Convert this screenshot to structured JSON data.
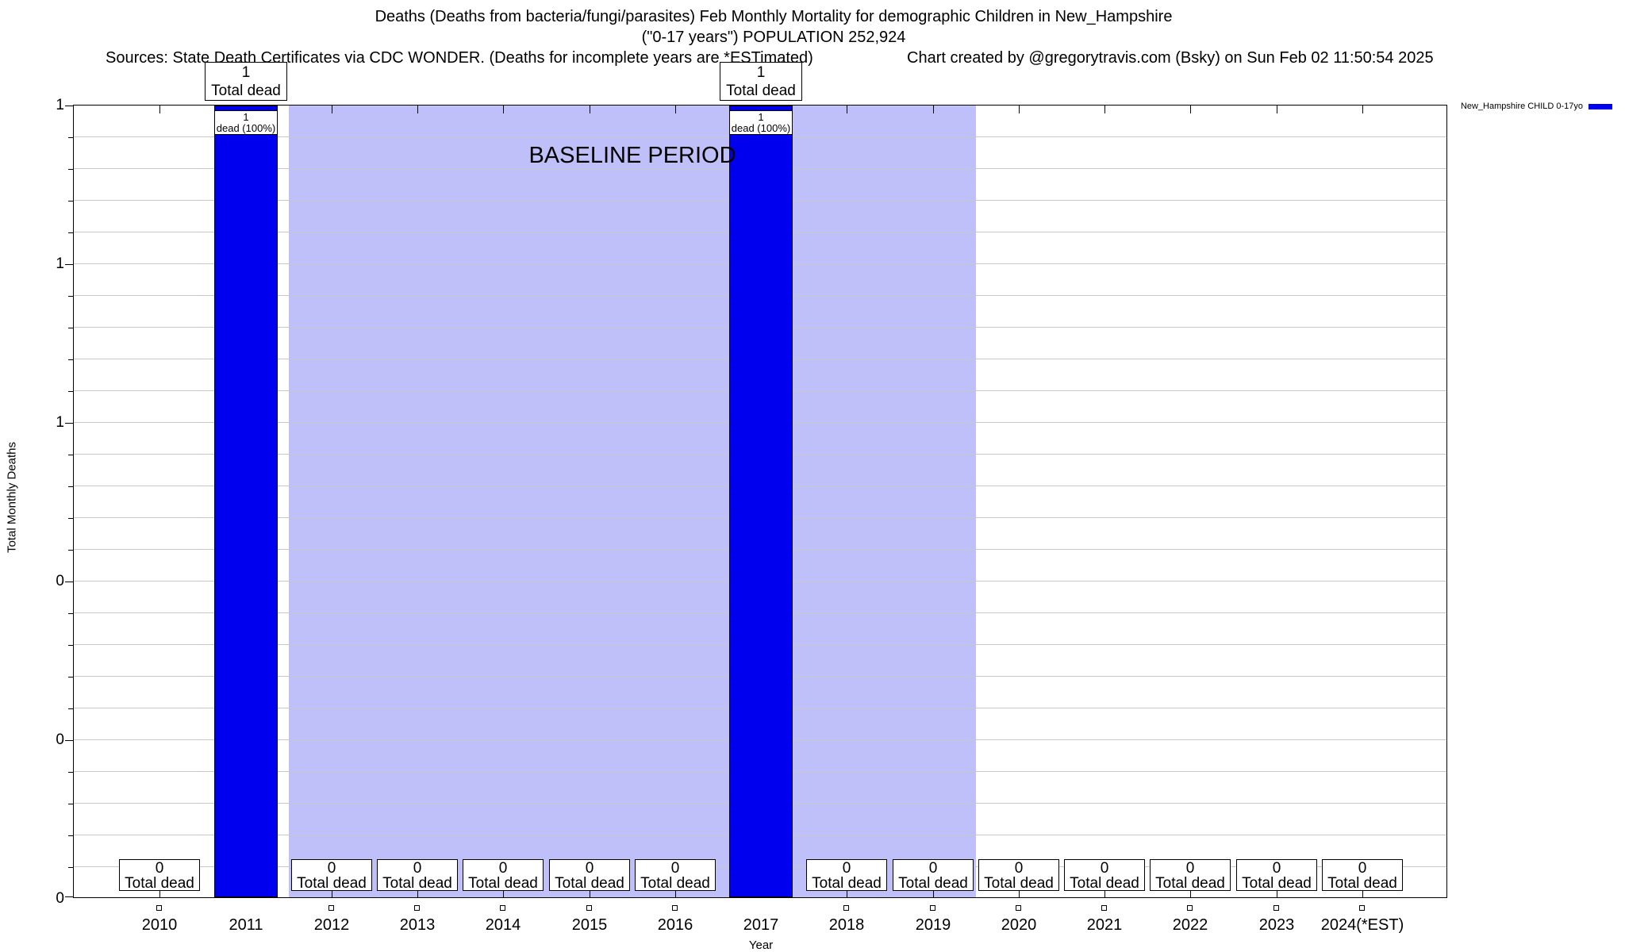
{
  "header": {
    "title_line1": "Deaths (Deaths from bacteria/fungi/parasites) Feb Monthly Mortality for demographic Children in New_Hampshire",
    "title_line2": "(\"0-17 years\") POPULATION 252,924",
    "sources": "Sources: State Death Certificates via CDC WONDER. (Deaths for incomplete years are *ESTimated)",
    "credit": "Chart created by @gregorytravis.com (Bsky) on Sun Feb 02 11:50:54 2025"
  },
  "legend": {
    "label": "New_Hampshire CHILD 0-17yo",
    "swatch_color": "#0000ee"
  },
  "chart_data": {
    "type": "bar",
    "title": "Deaths (Deaths from bacteria/fungi/parasites) Feb Monthly Mortality for demographic Children in New_Hampshire (\"0-17 years\") POPULATION 252,924",
    "xlabel": "Year",
    "ylabel": "Total Monthly Deaths",
    "ylim": [
      0,
      1
    ],
    "grid": true,
    "legend_position": "top-right",
    "ytick_labels_top_to_bottom": [
      "1",
      "1",
      "1",
      "0",
      "0",
      "0"
    ],
    "categories": [
      "2010",
      "2011",
      "2012",
      "2013",
      "2014",
      "2015",
      "2016",
      "2017",
      "2018",
      "2019",
      "2020",
      "2021",
      "2022",
      "2023",
      "2024(*EST)"
    ],
    "series": [
      {
        "name": "New_Hampshire CHILD 0-17yo",
        "color": "#0000ee",
        "values": [
          0,
          1,
          0,
          0,
          0,
          0,
          0,
          1,
          0,
          0,
          0,
          0,
          0,
          0,
          0
        ]
      }
    ],
    "years": [
      {
        "label": "2010",
        "value": 0,
        "zero_box": true,
        "marker": "open-square"
      },
      {
        "label": "2011",
        "value": 1,
        "top_box": {
          "line1": "1",
          "line2": "Total dead"
        },
        "bar_box": {
          "line1": "1",
          "line2": "dead (100%)"
        }
      },
      {
        "label": "2012",
        "value": 0,
        "zero_box": true,
        "marker": "open-square"
      },
      {
        "label": "2013",
        "value": 0,
        "zero_box": true,
        "marker": "open-square"
      },
      {
        "label": "2014",
        "value": 0,
        "zero_box": true,
        "marker": "open-square"
      },
      {
        "label": "2015",
        "value": 0,
        "zero_box": true,
        "marker": "open-square"
      },
      {
        "label": "2016",
        "value": 0,
        "zero_box": true,
        "marker": "open-square"
      },
      {
        "label": "2017",
        "value": 1,
        "top_box": {
          "line1": "1",
          "line2": "Total dead"
        },
        "bar_box": {
          "line1": "1",
          "line2": "dead (100%)"
        }
      },
      {
        "label": "2018",
        "value": 0,
        "zero_box": true,
        "marker": "open-square"
      },
      {
        "label": "2019",
        "value": 0,
        "zero_box": true,
        "marker": "open-square"
      },
      {
        "label": "2020",
        "value": 0,
        "zero_box": true,
        "marker": "open-square"
      },
      {
        "label": "2021",
        "value": 0,
        "zero_box": true,
        "marker": "open-square"
      },
      {
        "label": "2022",
        "value": 0,
        "zero_box": true,
        "marker": "open-square"
      },
      {
        "label": "2023",
        "value": 0,
        "zero_box": true,
        "marker": "open-square"
      },
      {
        "label": "2024(*EST)",
        "value": 0,
        "zero_box": true,
        "marker": "open-square"
      }
    ],
    "zero_box_text": {
      "line1": "0",
      "line2": "Total dead"
    },
    "baseline_region": {
      "label": "BASELINE PERIOD",
      "from": "2012",
      "to": "2019",
      "color": "#bfbffa"
    },
    "colors": {
      "bar": "#0000ee",
      "baseline_region": "#bfbffa",
      "gridline": "#c8c8c8",
      "axis": "#000000"
    }
  }
}
